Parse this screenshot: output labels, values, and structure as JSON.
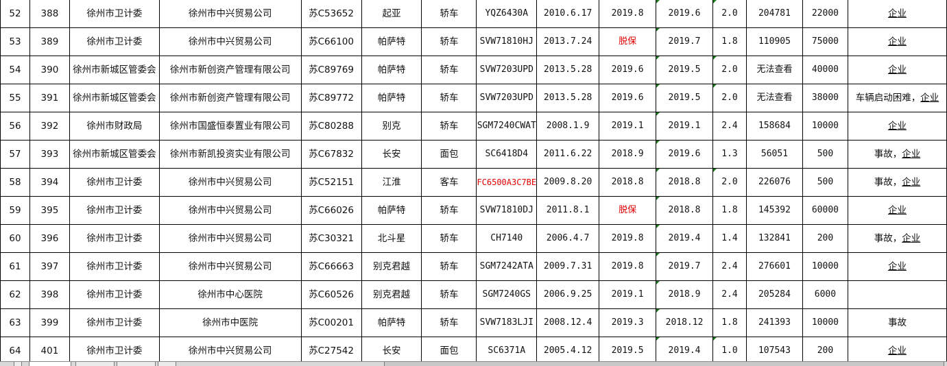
{
  "colors": {
    "warning_text": "#e00000",
    "comment_marker": "#1f7a1f",
    "grid_line": "#000000"
  },
  "rows": [
    {
      "no": "52",
      "id": "388",
      "dept": "徐州市卫计委",
      "company": "徐州市中兴贸易公司",
      "plate": "苏C53652",
      "brand": "起亚",
      "type": "轿车",
      "model": "YQZ6430A",
      "reg": "2010.6.17",
      "insure": "2019.8",
      "inspect": "2019.6",
      "disp": "2.0",
      "mileage": "204781",
      "price": "22000",
      "note_pre": "",
      "note_link": "企业"
    },
    {
      "no": "53",
      "id": "389",
      "dept": "徐州市卫计委",
      "company": "徐州市中兴贸易公司",
      "plate": "苏C66100",
      "brand": "帕萨特",
      "type": "轿车",
      "model": "SVW71810HJ",
      "reg": "2013.7.24",
      "insure": "脱保",
      "inspect": "2019.7",
      "disp": "1.8",
      "mileage": "110905",
      "price": "75000",
      "note_pre": "",
      "note_link": "企业"
    },
    {
      "no": "54",
      "id": "390",
      "dept": "徐州市新城区管委会",
      "company": "徐州市新创资产管理有限公司",
      "plate": "苏C89769",
      "brand": "帕萨特",
      "type": "轿车",
      "model": "SVW7203UPD",
      "reg": "2013.5.28",
      "insure": "2019.6",
      "inspect": "2019.5",
      "disp": "2.0",
      "mileage": "无法查看",
      "price": "40000",
      "note_pre": "",
      "note_link": "企业"
    },
    {
      "no": "55",
      "id": "391",
      "dept": "徐州市新城区管委会",
      "company": "徐州市新创资产管理有限公司",
      "plate": "苏C89772",
      "brand": "帕萨特",
      "type": "轿车",
      "model": "SVW7203UPD",
      "reg": "2013.5.28",
      "insure": "2019.6",
      "inspect": "2019.5",
      "disp": "2.0",
      "mileage": "无法查看",
      "price": "38000",
      "note_pre": "车辆启动困难，",
      "note_link": "企业"
    },
    {
      "no": "56",
      "id": "392",
      "dept": "徐州市财政局",
      "company": "徐州市国盛恒泰置业有限公司",
      "plate": "苏C80288",
      "brand": "别克",
      "type": "轿车",
      "model": "SGM7240CWAT",
      "reg": "2008.1.9",
      "insure": "2019.1",
      "inspect": "2019.1",
      "disp": "2.4",
      "mileage": "158684",
      "price": "10000",
      "note_pre": "",
      "note_link": "企业"
    },
    {
      "no": "57",
      "id": "393",
      "dept": "徐州市新城区管委会",
      "company": "徐州市新凯投资实业有限公司",
      "plate": "苏C67832",
      "brand": "长安",
      "type": "面包",
      "model": "SC6418D4",
      "reg": "2011.6.22",
      "insure": "2018.9",
      "inspect": "2019.6",
      "disp": "1.3",
      "mileage": "56051",
      "price": "500",
      "note_pre": "事故，",
      "note_link": "企业"
    },
    {
      "no": "58",
      "id": "394",
      "dept": "徐州市卫计委",
      "company": "徐州市中兴贸易公司",
      "plate": "苏C52151",
      "brand": "江淮",
      "type": "客车",
      "model": "FC6500A3C7BE",
      "reg": "2009.8.20",
      "insure": "2018.8",
      "inspect": "2018.8",
      "disp": "2.0",
      "mileage": "226076",
      "price": "500",
      "note_pre": "事故，",
      "note_link": "企业"
    },
    {
      "no": "59",
      "id": "395",
      "dept": "徐州市卫计委",
      "company": "徐州市中兴贸易公司",
      "plate": "苏C66026",
      "brand": "帕萨特",
      "type": "轿车",
      "model": "SVW71810DJ",
      "reg": "2011.8.1",
      "insure": "脱保",
      "inspect": "2018.8",
      "disp": "1.8",
      "mileage": "145392",
      "price": "60000",
      "note_pre": "",
      "note_link": "企业"
    },
    {
      "no": "60",
      "id": "396",
      "dept": "徐州市卫计委",
      "company": "徐州市中兴贸易公司",
      "plate": "苏C30321",
      "brand": "北斗星",
      "type": "轿车",
      "model": "CH7140",
      "reg": "2006.4.7",
      "insure": "2019.8",
      "inspect": "2019.4",
      "disp": "1.4",
      "mileage": "132841",
      "price": "200",
      "note_pre": "事故，",
      "note_link": "企业"
    },
    {
      "no": "61",
      "id": "397",
      "dept": "徐州市卫计委",
      "company": "徐州市中兴贸易公司",
      "plate": "苏C66663",
      "brand": "别克君越",
      "type": "轿车",
      "model": "SGM7242ATA",
      "reg": "2009.7.31",
      "insure": "2019.8",
      "inspect": "2019.7",
      "disp": "2.4",
      "mileage": "276601",
      "price": "10000",
      "note_pre": "",
      "note_link": "企业"
    },
    {
      "no": "62",
      "id": "398",
      "dept": "徐州市卫计委",
      "company": "徐州市中心医院",
      "plate": "苏C60526",
      "brand": "别克君越",
      "type": "轿车",
      "model": "SGM7240GS",
      "reg": "2006.9.25",
      "insure": "2019.1",
      "inspect": "2018.9",
      "disp": "2.4",
      "mileage": "205284",
      "price": "6000",
      "note_pre": "",
      "note_link": ""
    },
    {
      "no": "63",
      "id": "399",
      "dept": "徐州市卫计委",
      "company": "徐州市中医院",
      "plate": "苏C00201",
      "brand": "帕萨特",
      "type": "轿车",
      "model": "SVW7183LJI",
      "reg": "2008.12.4",
      "insure": "2019.3",
      "inspect": "2018.12",
      "disp": "1.8",
      "mileage": "241393",
      "price": "10000",
      "note_pre": "事故",
      "note_link": ""
    },
    {
      "no": "64",
      "id": "401",
      "dept": "徐州市卫计委",
      "company": "徐州市中兴贸易公司",
      "plate": "苏C27542",
      "brand": "长安",
      "type": "面包",
      "model": "SC6371A",
      "reg": "2005.4.12",
      "insure": "2019.5",
      "inspect": "2019.4",
      "disp": "1.0",
      "mileage": "107543",
      "price": "200",
      "note_pre": "",
      "note_link": "企业"
    }
  ]
}
